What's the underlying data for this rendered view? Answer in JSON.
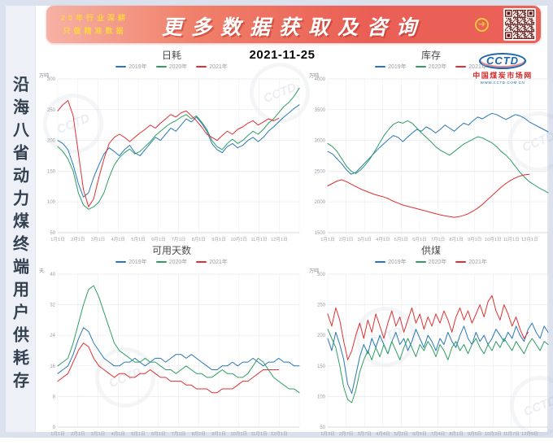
{
  "banner": {
    "promo_line1": "20年行业深耕",
    "promo_line2": "只做精准数据",
    "title": "更多数据获取及咨询",
    "arrow_icon": "➜"
  },
  "sidebar": {
    "vertical_title": "沿海八省动力煤终端用户供耗存"
  },
  "date": "2021-11-25",
  "logo": {
    "mark": "CCTD",
    "name_cn": "中国煤炭市场网",
    "url": "WWW.CCTD.COM.CN"
  },
  "watermark_text": "CCTD",
  "colors": {
    "blue": "#2878b5",
    "green": "#2f9e63",
    "red": "#e03030",
    "banner_red": "#ea5f55",
    "gold": "#f7c63e"
  },
  "chart_data": [
    {
      "id": "daily-consumption",
      "type": "line",
      "title": "日耗",
      "unit": "万吨",
      "ylim": [
        50,
        300
      ],
      "yticks": [
        50,
        100,
        150,
        200,
        250,
        300
      ],
      "grid": true,
      "legend_position": "top",
      "xlabels": [
        "1月1日",
        "2月1日",
        "3月1日",
        "4月1日",
        "5月1日",
        "6月1日",
        "7月1日",
        "8月1日",
        "9月1日",
        "10月1日",
        "11月1日",
        "12月1日"
      ],
      "series": [
        {
          "name": "2019年",
          "color": "#2878b5",
          "values": [
            200,
            195,
            185,
            160,
            130,
            108,
            115,
            140,
            160,
            178,
            188,
            182,
            175,
            185,
            192,
            180,
            175,
            185,
            195,
            205,
            200,
            210,
            220,
            215,
            225,
            235,
            230,
            238,
            228,
            215,
            195,
            185,
            180,
            190,
            195,
            188,
            192,
            200,
            205,
            198,
            205,
            215,
            222,
            230,
            238,
            245,
            252,
            258
          ]
        },
        {
          "name": "2020年",
          "color": "#2f9e63",
          "values": [
            190,
            182,
            170,
            150,
            115,
            95,
            88,
            92,
            100,
            115,
            140,
            160,
            172,
            180,
            186,
            178,
            182,
            190,
            198,
            208,
            215,
            222,
            228,
            232,
            238,
            242,
            235,
            240,
            230,
            218,
            200,
            190,
            185,
            195,
            202,
            195,
            200,
            208,
            215,
            210,
            218,
            228,
            235,
            245,
            255,
            262,
            272,
            285
          ]
        },
        {
          "name": "2021年",
          "color": "#e03030",
          "values": [
            248,
            258,
            265,
            240,
            180,
            120,
            92,
            105,
            140,
            170,
            195,
            205,
            210,
            205,
            198,
            205,
            212,
            218,
            225,
            220,
            228,
            235,
            242,
            238,
            245,
            248,
            240,
            232,
            222,
            210,
            205,
            200,
            208,
            215,
            210,
            218,
            222,
            228,
            232,
            225,
            230,
            235,
            232,
            236
          ]
        }
      ]
    },
    {
      "id": "inventory",
      "type": "line",
      "title": "库存",
      "unit": "万吨",
      "ylim": [
        1500,
        4000
      ],
      "yticks": [
        1500,
        2000,
        2500,
        3000,
        3500,
        4000
      ],
      "grid": true,
      "legend_position": "top",
      "xlabels": [
        "1月1日",
        "2月1日",
        "3月1日",
        "4月1日",
        "5月1日",
        "6月1日",
        "7月1日",
        "8月1日",
        "9月1日",
        "10月1日",
        "11月1日",
        "12月1日"
      ],
      "series": [
        {
          "name": "2019年",
          "color": "#2878b5",
          "values": [
            2820,
            2780,
            2700,
            2620,
            2520,
            2450,
            2480,
            2560,
            2640,
            2720,
            2800,
            2880,
            2950,
            3020,
            3080,
            3050,
            2980,
            3050,
            3120,
            3180,
            3150,
            3220,
            3180,
            3120,
            3180,
            3250,
            3200,
            3150,
            3220,
            3280,
            3250,
            3320,
            3380,
            3350,
            3400,
            3440,
            3420,
            3380,
            3340,
            3380,
            3420,
            3400,
            3360,
            3300,
            3260,
            3220,
            3180,
            3140
          ]
        },
        {
          "name": "2020年",
          "color": "#2f9e63",
          "values": [
            2950,
            2900,
            2820,
            2700,
            2580,
            2500,
            2460,
            2520,
            2600,
            2700,
            2820,
            2950,
            3080,
            3180,
            3260,
            3300,
            3280,
            3320,
            3280,
            3200,
            3120,
            3050,
            2980,
            2900,
            2840,
            2800,
            2760,
            2820,
            2880,
            2940,
            2980,
            3020,
            3060,
            3040,
            3000,
            2960,
            2900,
            2820,
            2760,
            2680,
            2580,
            2480,
            2400,
            2330,
            2280,
            2230,
            2190,
            2150
          ]
        },
        {
          "name": "2021年",
          "color": "#e03030",
          "values": [
            2260,
            2300,
            2340,
            2360,
            2330,
            2290,
            2250,
            2210,
            2180,
            2150,
            2120,
            2100,
            2080,
            2050,
            2010,
            1980,
            1950,
            1930,
            1910,
            1890,
            1870,
            1850,
            1830,
            1810,
            1790,
            1775,
            1760,
            1750,
            1760,
            1780,
            1810,
            1850,
            1900,
            1960,
            2030,
            2100,
            2170,
            2240,
            2300,
            2350,
            2390,
            2420,
            2440,
            2450
          ]
        }
      ]
    },
    {
      "id": "available-days",
      "type": "line",
      "title": "可用天数",
      "unit": "天",
      "ylim": [
        0,
        40
      ],
      "yticks": [
        0,
        8,
        16,
        24,
        32,
        40
      ],
      "grid": true,
      "legend_position": "top",
      "xlabels": [
        "1月1日",
        "2月1日",
        "3月1日",
        "4月1日",
        "5月1日",
        "6月1日",
        "7月1日",
        "8月1日",
        "9月1日",
        "10月1日",
        "11月1日",
        "12月1日"
      ],
      "series": [
        {
          "name": "2019年",
          "color": "#2878b5",
          "values": [
            14,
            15,
            16,
            19,
            23,
            26,
            25,
            22,
            20,
            18,
            17,
            16,
            16,
            17,
            17,
            18,
            17,
            16,
            17,
            18,
            18,
            17,
            18,
            19,
            19,
            18,
            19,
            18,
            17,
            16,
            15,
            15,
            16,
            16,
            17,
            16,
            17,
            17,
            18,
            17,
            16,
            17,
            17,
            18,
            17,
            17,
            16,
            16
          ]
        },
        {
          "name": "2020年",
          "color": "#2f9e63",
          "values": [
            16,
            17,
            18,
            22,
            27,
            32,
            36,
            37,
            34,
            30,
            26,
            22,
            20,
            19,
            18,
            17,
            17,
            18,
            17,
            17,
            16,
            15,
            15,
            14,
            15,
            16,
            15,
            14,
            14,
            13,
            13,
            14,
            15,
            14,
            14,
            13,
            13,
            14,
            16,
            18,
            17,
            15,
            13,
            12,
            11,
            10,
            10,
            9
          ]
        },
        {
          "name": "2021年",
          "color": "#e03030",
          "values": [
            12,
            13,
            14,
            17,
            20,
            22,
            21,
            18,
            16,
            15,
            14,
            13,
            14,
            14,
            13,
            13,
            14,
            14,
            15,
            14,
            13,
            13,
            12,
            12,
            12,
            11,
            11,
            10,
            10,
            10,
            9,
            9,
            10,
            10,
            10,
            11,
            12,
            12,
            13,
            14,
            15,
            15,
            15,
            15
          ]
        }
      ]
    },
    {
      "id": "coal-supply",
      "type": "line",
      "title": "供煤",
      "unit": "万吨",
      "ylim": [
        50,
        300
      ],
      "yticks": [
        50,
        100,
        150,
        200,
        250,
        300
      ],
      "grid": true,
      "legend_position": "top",
      "xlabels": [
        "1月3日",
        "2月7日",
        "3月7日",
        "4月4日",
        "5月2日",
        "6月6日",
        "7月4日",
        "8月1日",
        "9月5日",
        "10月3日",
        "11月7日",
        "12月5日"
      ],
      "series": [
        {
          "name": "2019年",
          "color": "#2878b5",
          "values": [
            195,
            175,
            205,
            185,
            160,
            120,
            105,
            135,
            165,
            185,
            170,
            195,
            180,
            200,
            185,
            170,
            190,
            205,
            185,
            195,
            175,
            190,
            210,
            195,
            180,
            200,
            190,
            175,
            195,
            185,
            205,
            190,
            180,
            200,
            215,
            195,
            185,
            205,
            190,
            200,
            185,
            195,
            210,
            200,
            190,
            205,
            195,
            215,
            200,
            190,
            210,
            220,
            205,
            195,
            215,
            205
          ]
        },
        {
          "name": "2020年",
          "color": "#2f9e63",
          "values": [
            210,
            195,
            180,
            150,
            115,
            95,
            90,
            110,
            140,
            160,
            175,
            160,
            180,
            165,
            185,
            170,
            190,
            175,
            160,
            180,
            195,
            180,
            165,
            185,
            175,
            190,
            180,
            165,
            185,
            175,
            160,
            180,
            190,
            175,
            185,
            170,
            185,
            195,
            180,
            170,
            185,
            175,
            190,
            180,
            195,
            185,
            175,
            190,
            180,
            170,
            185,
            195,
            185,
            175,
            190,
            185
          ]
        },
        {
          "name": "2021年",
          "color": "#e03030",
          "values": [
            235,
            215,
            245,
            225,
            190,
            160,
            175,
            200,
            220,
            195,
            225,
            205,
            235,
            215,
            195,
            220,
            240,
            215,
            230,
            205,
            225,
            245,
            220,
            235,
            210,
            230,
            215,
            235,
            220,
            240,
            225,
            205,
            230,
            245,
            225,
            240,
            220,
            235,
            250,
            230,
            255,
            265,
            240,
            225,
            250,
            235,
            215,
            230,
            210,
            195,
            205
          ]
        }
      ]
    }
  ]
}
